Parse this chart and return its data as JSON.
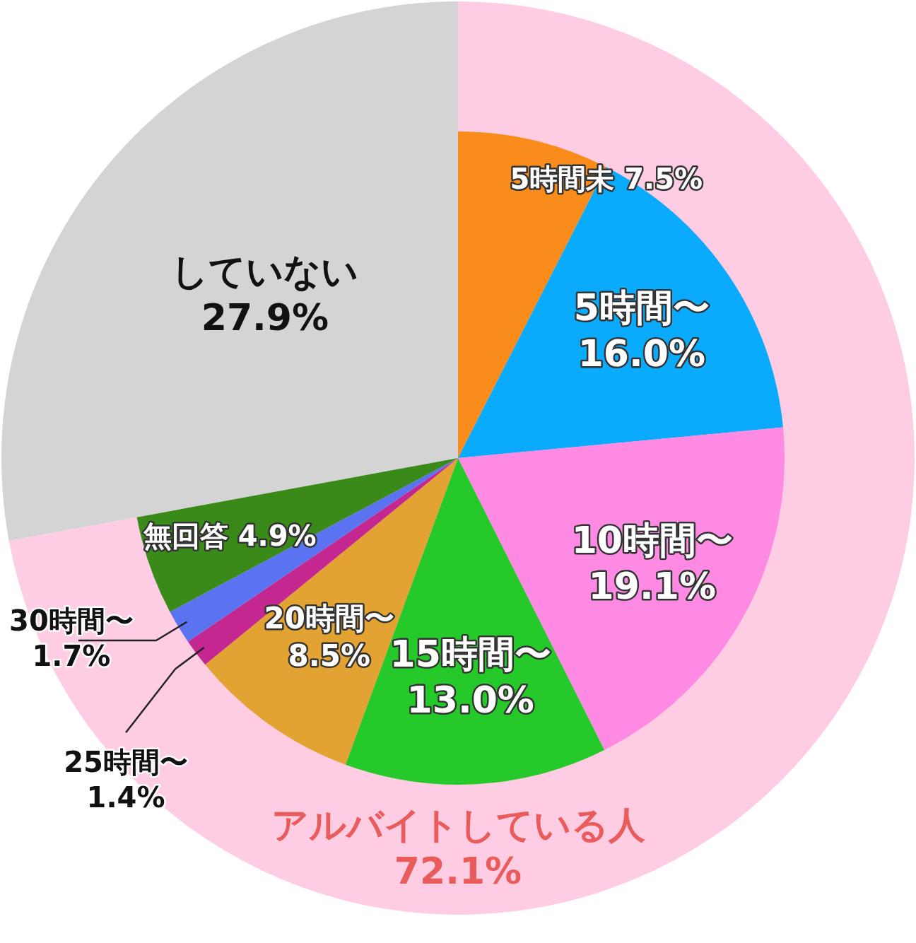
{
  "chart_data": [
    {
      "type": "pie",
      "categories": [
        "アルバイトしている人",
        "していない"
      ],
      "values": [
        72.1,
        27.9
      ],
      "colors": [
        "#ffcde3",
        "#d4d4d4"
      ],
      "value_labels": [
        "72.1%",
        "27.9%"
      ]
    },
    {
      "type": "pie",
      "categories": [
        "5時間未",
        "5時間〜",
        "10時間〜",
        "15時間〜",
        "20時間〜",
        "25時間〜",
        "30時間〜",
        "無回答"
      ],
      "values": [
        7.5,
        16.0,
        19.1,
        13.0,
        8.5,
        1.4,
        1.7,
        4.9
      ],
      "colors": [
        "#f98c1a",
        "#0aabfd",
        "#ff8ae3",
        "#25c92a",
        "#e2a332",
        "#c42890",
        "#5a73f0",
        "#3a8a1a"
      ],
      "value_labels": [
        "7.5%",
        "16.0%",
        "19.1%",
        "13.0%",
        "8.5%",
        "1.4%",
        "1.7%",
        "4.9%"
      ]
    }
  ]
}
